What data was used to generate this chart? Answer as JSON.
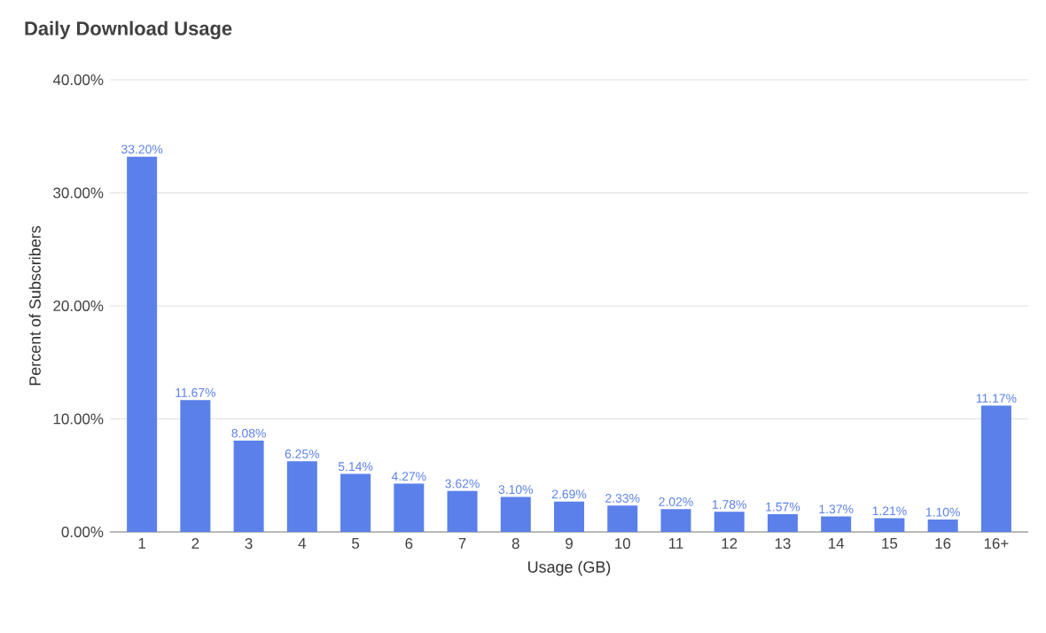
{
  "chart_data": {
    "type": "bar",
    "title": "Daily Download Usage",
    "xlabel": "Usage (GB)",
    "ylabel": "Percent of Subscribers",
    "categories": [
      "1",
      "2",
      "3",
      "4",
      "5",
      "6",
      "7",
      "8",
      "9",
      "10",
      "11",
      "12",
      "13",
      "14",
      "15",
      "16",
      "16+"
    ],
    "values": [
      33.2,
      11.67,
      8.08,
      6.25,
      5.14,
      4.27,
      3.62,
      3.1,
      2.69,
      2.33,
      2.02,
      1.78,
      1.57,
      1.37,
      1.21,
      1.1,
      11.17
    ],
    "value_labels": [
      "33.20%",
      "11.67%",
      "8.08%",
      "6.25%",
      "5.14%",
      "4.27%",
      "3.62%",
      "3.10%",
      "2.69%",
      "2.33%",
      "2.02%",
      "1.78%",
      "1.57%",
      "1.37%",
      "1.21%",
      "1.10%",
      "11.17%"
    ],
    "color": "#5b80ea",
    "ylim": [
      0,
      40
    ],
    "yticks": [
      {
        "value": 0,
        "label": "0.00%"
      },
      {
        "value": 10,
        "label": "10.00%"
      },
      {
        "value": 20,
        "label": "20.00%"
      },
      {
        "value": 30,
        "label": "30.00%"
      },
      {
        "value": 40,
        "label": "40.00%"
      }
    ],
    "grid": "y"
  }
}
